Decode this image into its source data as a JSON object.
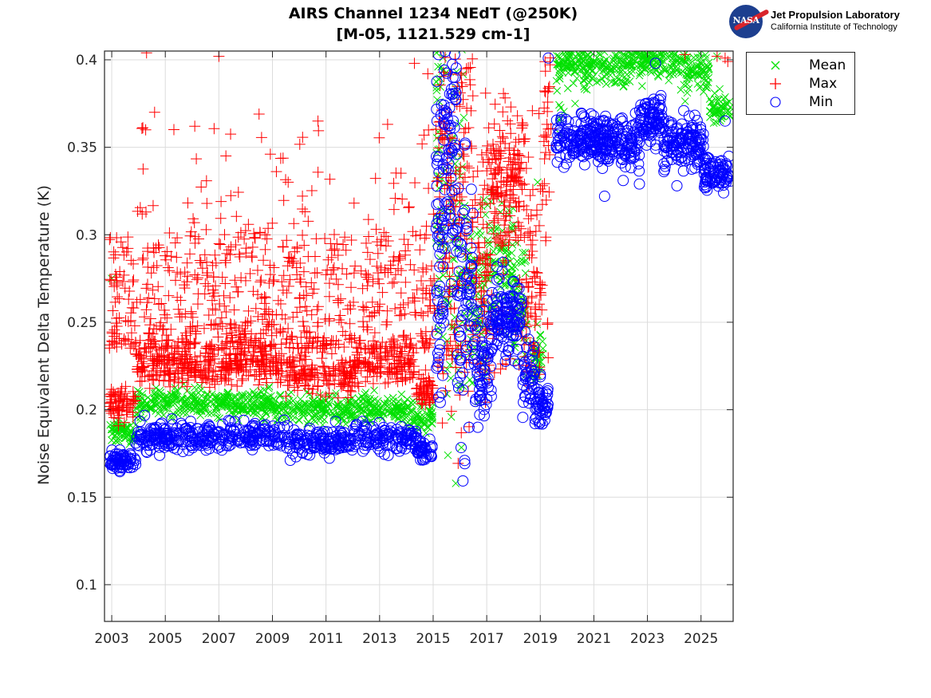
{
  "logo": {
    "emblem_text": "NASA",
    "line1": "Jet Propulsion Laboratory",
    "line2": "California Institute of Technology"
  },
  "chart_data": {
    "type": "scatter",
    "title": "AIRS Channel 1234 NEdT (@250K)",
    "subtitle": "[M-05, 1121.529 cm-1]",
    "xlabel": "",
    "ylabel": "Noise Equivalent Delta Temperature (K)",
    "xlim": [
      2002.73,
      2026.2
    ],
    "ylim": [
      0.079,
      0.405
    ],
    "grid": true,
    "legend_position": "outside-top-right",
    "x_ticks": [
      2003,
      2005,
      2007,
      2009,
      2011,
      2013,
      2015,
      2017,
      2019,
      2021,
      2023,
      2025
    ],
    "x_tick_labels": [
      "2003",
      "2005",
      "2007",
      "2009",
      "2011",
      "2013",
      "2015",
      "2017",
      "2019",
      "2021",
      "2023",
      "2025"
    ],
    "y_ticks": [
      0.1,
      0.15,
      0.2,
      0.25,
      0.3,
      0.35,
      0.4
    ],
    "y_tick_labels": [
      "0.1",
      "0.15",
      "0.2",
      "0.25",
      "0.3",
      "0.35",
      "0.4"
    ],
    "series": [
      {
        "name": "Mean",
        "marker": "x",
        "color": "#00e000",
        "segments": [
          {
            "x_start": 2002.9,
            "x_end": 2003.9,
            "y_center": 0.187,
            "y_spread": 0.003,
            "count": 60
          },
          {
            "x_start": 2003.9,
            "x_end": 2009.0,
            "y_center": 0.204,
            "y_spread": 0.004,
            "count": 320
          },
          {
            "x_start": 2009.0,
            "x_end": 2012.0,
            "y_center": 0.2,
            "y_spread": 0.004,
            "count": 180
          },
          {
            "x_start": 2012.0,
            "x_end": 2014.0,
            "y_center": 0.201,
            "y_spread": 0.004,
            "count": 120
          },
          {
            "x_start": 2014.0,
            "x_end": 2015.0,
            "y_center": 0.196,
            "y_spread": 0.004,
            "count": 60
          },
          {
            "x_start": 2015.1,
            "x_end": 2015.5,
            "y_center": 0.34,
            "y_spread": 0.05,
            "count": 60
          },
          {
            "x_start": 2015.5,
            "x_end": 2016.2,
            "y_center": 0.3,
            "y_spread": 0.06,
            "count": 70
          },
          {
            "x_start": 2016.2,
            "x_end": 2017.0,
            "y_center": 0.265,
            "y_spread": 0.03,
            "count": 70
          },
          {
            "x_start": 2017.0,
            "x_end": 2018.0,
            "y_center": 0.285,
            "y_spread": 0.02,
            "count": 90
          },
          {
            "x_start": 2018.0,
            "x_end": 2018.5,
            "y_center": 0.26,
            "y_spread": 0.02,
            "count": 50
          },
          {
            "x_start": 2018.7,
            "x_end": 2019.1,
            "y_center": 0.232,
            "y_spread": 0.008,
            "count": 40
          },
          {
            "x_start": 2019.6,
            "x_end": 2020.0,
            "y_center": 0.39,
            "y_spread": 0.012,
            "count": 40
          },
          {
            "x_start": 2020.0,
            "x_end": 2022.5,
            "y_center": 0.398,
            "y_spread": 0.006,
            "count": 200
          },
          {
            "x_start": 2022.5,
            "x_end": 2024.2,
            "y_center": 0.4,
            "y_spread": 0.005,
            "count": 120
          },
          {
            "x_start": 2024.2,
            "x_end": 2025.3,
            "y_center": 0.392,
            "y_spread": 0.006,
            "count": 80
          },
          {
            "x_start": 2025.3,
            "x_end": 2026.1,
            "y_center": 0.372,
            "y_spread": 0.004,
            "count": 50
          }
        ],
        "outliers": [
          [
            2003.0,
            0.275
          ],
          [
            2016.9,
            0.32
          ],
          [
            2018.9,
            0.33
          ],
          [
            2020.3,
            0.375
          ],
          [
            2022.8,
            0.385
          ],
          [
            2025.6,
            0.402
          ]
        ]
      },
      {
        "name": "Max",
        "marker": "+",
        "color": "#ff0000",
        "segments": [
          {
            "x_start": 2002.9,
            "x_end": 2003.9,
            "y_center": 0.204,
            "y_spread": 0.005,
            "count": 70
          },
          {
            "x_start": 2003.9,
            "x_end": 2009.5,
            "y_center": 0.226,
            "y_spread": 0.006,
            "count": 360
          },
          {
            "x_start": 2009.5,
            "x_end": 2012.0,
            "y_center": 0.22,
            "y_spread": 0.006,
            "count": 150
          },
          {
            "x_start": 2012.0,
            "x_end": 2014.3,
            "y_center": 0.226,
            "y_spread": 0.006,
            "count": 140
          },
          {
            "x_start": 2014.3,
            "x_end": 2015.0,
            "y_center": 0.212,
            "y_spread": 0.005,
            "count": 50
          },
          {
            "x_start": 2015.1,
            "x_end": 2016.5,
            "y_center": 0.33,
            "y_spread": 0.06,
            "count": 120
          },
          {
            "x_start": 2016.5,
            "x_end": 2017.2,
            "y_center": 0.29,
            "y_spread": 0.04,
            "count": 60
          },
          {
            "x_start": 2017.2,
            "x_end": 2018.4,
            "y_center": 0.33,
            "y_spread": 0.02,
            "count": 130
          },
          {
            "x_start": 2018.4,
            "x_end": 2019.0,
            "y_center": 0.27,
            "y_spread": 0.03,
            "count": 50
          },
          {
            "x_start": 2019.0,
            "x_end": 2019.4,
            "y_center": 0.37,
            "y_spread": 0.025,
            "count": 30
          }
        ],
        "scatter": [
          {
            "x_start": 2002.9,
            "x_end": 2015.0,
            "y_min": 0.235,
            "y_max": 0.3,
            "count": 650
          },
          {
            "x_start": 2003.9,
            "x_end": 2015.0,
            "y_min": 0.3,
            "y_max": 0.37,
            "count": 80
          },
          {
            "x_start": 2015.0,
            "x_end": 2019.3,
            "y_min": 0.22,
            "y_max": 0.4,
            "count": 160
          }
        ],
        "outliers": [
          [
            2004.3,
            0.404
          ],
          [
            2007.0,
            0.402
          ],
          [
            2004.6,
            0.37
          ],
          [
            2008.5,
            0.369
          ],
          [
            2010.7,
            0.365
          ],
          [
            2006.1,
            0.362
          ],
          [
            2014.3,
            0.398
          ],
          [
            2014.8,
            0.392
          ],
          [
            2025.6,
            0.402
          ],
          [
            2024.4,
            0.403
          ],
          [
            2025.9,
            0.401
          ],
          [
            2026.0,
            0.399
          ]
        ]
      },
      {
        "name": "Min",
        "marker": "o",
        "color": "#0000ff",
        "segments": [
          {
            "x_start": 2002.9,
            "x_end": 2003.9,
            "y_center": 0.171,
            "y_spread": 0.003,
            "count": 70
          },
          {
            "x_start": 2003.9,
            "x_end": 2009.5,
            "y_center": 0.185,
            "y_spread": 0.004,
            "count": 300
          },
          {
            "x_start": 2009.5,
            "x_end": 2012.0,
            "y_center": 0.181,
            "y_spread": 0.004,
            "count": 140
          },
          {
            "x_start": 2012.0,
            "x_end": 2014.4,
            "y_center": 0.184,
            "y_spread": 0.004,
            "count": 120
          },
          {
            "x_start": 2014.4,
            "x_end": 2015.0,
            "y_center": 0.177,
            "y_spread": 0.003,
            "count": 40
          },
          {
            "x_start": 2015.1,
            "x_end": 2015.4,
            "y_center": 0.29,
            "y_spread": 0.05,
            "count": 60
          },
          {
            "x_start": 2015.4,
            "x_end": 2015.9,
            "y_center": 0.35,
            "y_spread": 0.04,
            "count": 70
          },
          {
            "x_start": 2015.9,
            "x_end": 2016.5,
            "y_center": 0.26,
            "y_spread": 0.04,
            "count": 70
          },
          {
            "x_start": 2016.5,
            "x_end": 2017.2,
            "y_center": 0.225,
            "y_spread": 0.02,
            "count": 70
          },
          {
            "x_start": 2017.2,
            "x_end": 2018.3,
            "y_center": 0.255,
            "y_spread": 0.012,
            "count": 120
          },
          {
            "x_start": 2018.3,
            "x_end": 2018.8,
            "y_center": 0.22,
            "y_spread": 0.01,
            "count": 40
          },
          {
            "x_start": 2018.8,
            "x_end": 2019.3,
            "y_center": 0.203,
            "y_spread": 0.006,
            "count": 50
          },
          {
            "x_start": 2019.6,
            "x_end": 2022.0,
            "y_center": 0.355,
            "y_spread": 0.007,
            "count": 220
          },
          {
            "x_start": 2022.0,
            "x_end": 2022.7,
            "y_center": 0.352,
            "y_spread": 0.008,
            "count": 60
          },
          {
            "x_start": 2022.7,
            "x_end": 2023.6,
            "y_center": 0.365,
            "y_spread": 0.007,
            "count": 90
          },
          {
            "x_start": 2023.6,
            "x_end": 2025.1,
            "y_center": 0.352,
            "y_spread": 0.007,
            "count": 130
          },
          {
            "x_start": 2025.1,
            "x_end": 2026.1,
            "y_center": 0.335,
            "y_spread": 0.005,
            "count": 80
          }
        ],
        "outliers": [
          [
            2015.2,
            0.403
          ],
          [
            2015.8,
            0.403
          ],
          [
            2019.3,
            0.401
          ],
          [
            2023.3,
            0.398
          ],
          [
            2021.4,
            0.322
          ],
          [
            2022.7,
            0.329
          ],
          [
            2024.1,
            0.328
          ],
          [
            2025.9,
            0.365
          ]
        ]
      }
    ]
  }
}
